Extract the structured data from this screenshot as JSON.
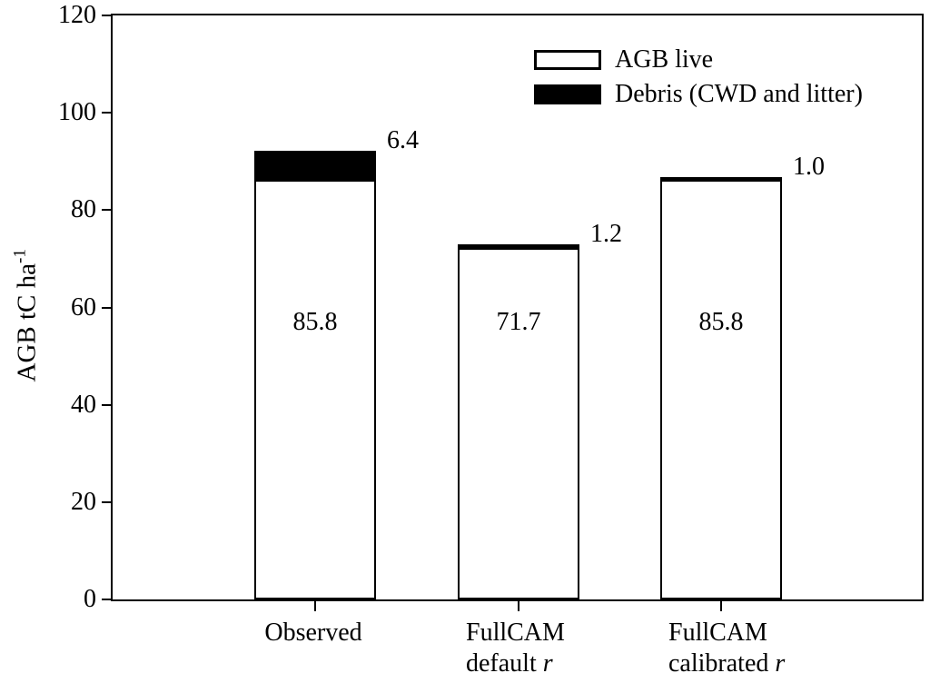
{
  "chart_data": {
    "type": "bar",
    "stacked": true,
    "title": "",
    "ylabel_base": "AGB tC ha",
    "ylabel_exponent": "-1",
    "xlabel": "",
    "ylim": [
      0,
      120
    ],
    "yticks": [
      0,
      20,
      40,
      60,
      80,
      100,
      120
    ],
    "grid": false,
    "legend_position": "upper-right-inside",
    "categories": [
      {
        "lines": [
          "Observed"
        ],
        "italic_suffix": ""
      },
      {
        "lines": [
          "FullCAM",
          "default "
        ],
        "italic_suffix": "r"
      },
      {
        "lines": [
          "FullCAM",
          "calibrated "
        ],
        "italic_suffix": "r"
      }
    ],
    "series": [
      {
        "name": "AGB live",
        "color": "#ffffff",
        "values": [
          85.8,
          71.7,
          85.8
        ]
      },
      {
        "name": "Debris (CWD and litter)",
        "color": "#000000",
        "values": [
          6.4,
          1.2,
          1.0
        ]
      }
    ],
    "bar_inner_labels": [
      "85.8",
      "71.7",
      "85.8"
    ],
    "bar_top_annotations": [
      "6.4",
      "1.2",
      "1.0"
    ],
    "colors": {
      "foreground": "#000000",
      "background": "#ffffff"
    }
  }
}
